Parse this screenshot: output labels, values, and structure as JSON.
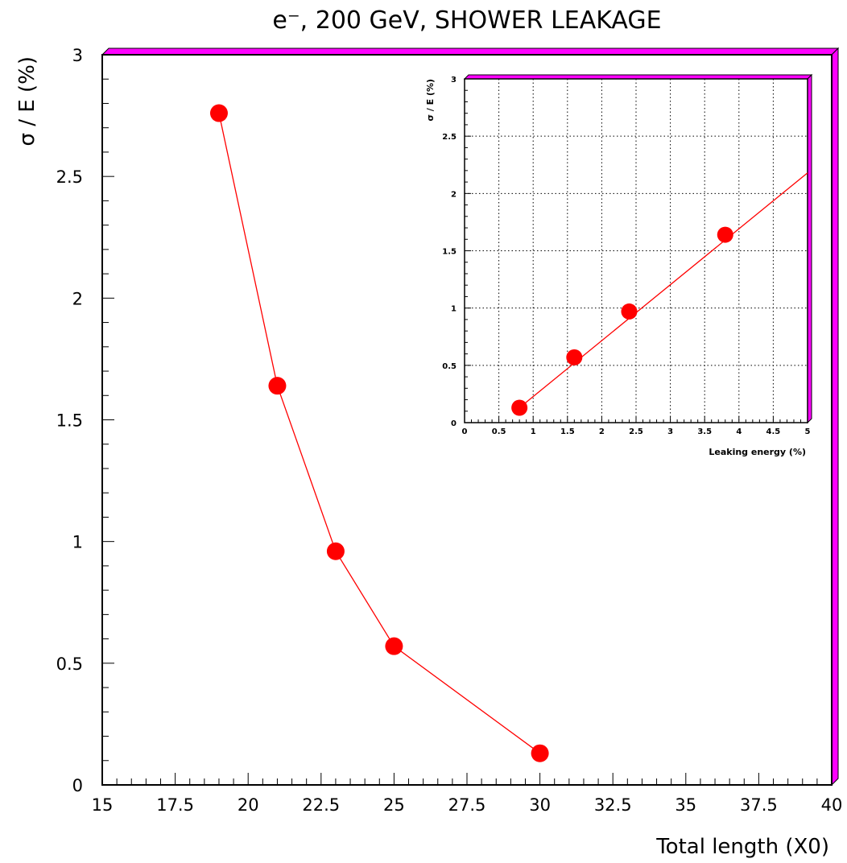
{
  "chart_data": [
    {
      "type": "line",
      "title": "e⁻, 200 GeV, SHOWER LEAKAGE",
      "xlabel": "Total length (X0)",
      "ylabel": "σ / E (%)",
      "xlim": [
        15,
        40
      ],
      "ylim": [
        0,
        3
      ],
      "x_ticks": [
        "15",
        "17.5",
        "20",
        "22.5",
        "25",
        "27.5",
        "30",
        "32.5",
        "35",
        "37.5",
        "40"
      ],
      "y_ticks": [
        "0",
        "0.5",
        "1",
        "1.5",
        "2",
        "2.5",
        "3"
      ],
      "grid": false,
      "series": [
        {
          "x": [
            19,
            21,
            23,
            25,
            30
          ],
          "y": [
            2.76,
            1.64,
            0.96,
            0.57,
            0.13
          ]
        }
      ],
      "colors": {
        "line": "#ff0000",
        "marker": "#ff0000",
        "frame_shadow": "#ff00ff"
      }
    },
    {
      "type": "scatter",
      "title": "",
      "xlabel": "Leaking energy (%)",
      "ylabel": "σ / E (%)",
      "xlim": [
        0,
        5
      ],
      "ylim": [
        0,
        3
      ],
      "x_ticks": [
        "0",
        "0.5",
        "1",
        "1.5",
        "2",
        "2.5",
        "3",
        "3.5",
        "4",
        "4.5",
        "5"
      ],
      "y_ticks": [
        "0",
        "0.5",
        "1",
        "1.5",
        "2",
        "2.5",
        "3"
      ],
      "grid": true,
      "series": [
        {
          "x": [
            0.8,
            1.6,
            2.4,
            3.8
          ],
          "y": [
            0.13,
            0.57,
            0.97,
            1.64
          ]
        }
      ],
      "fit_line": {
        "x": [
          0.8,
          5
        ],
        "y": [
          0.13,
          2.18
        ]
      },
      "colors": {
        "line": "#ff0000",
        "marker": "#ff0000",
        "frame_shadow": "#ff00ff"
      }
    }
  ]
}
